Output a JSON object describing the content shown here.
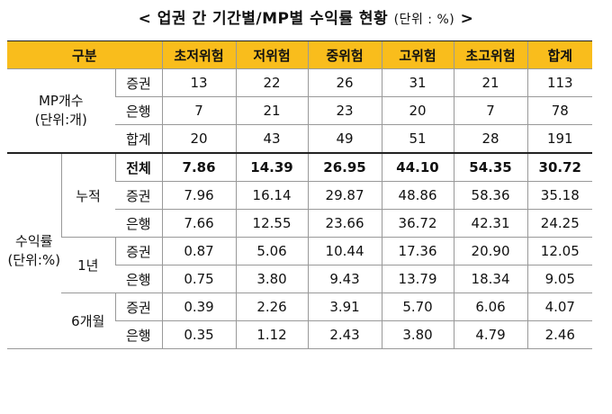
{
  "title": {
    "main": "< 업권 간 기간별/MP별 수익률 현황",
    "unit": "(단위 : %)",
    "close": ">"
  },
  "header": {
    "category": "구분",
    "columns": [
      "초저위험",
      "저위험",
      "중위험",
      "고위험",
      "초고위험",
      "합계"
    ]
  },
  "mp_count": {
    "label_line1": "MP개수",
    "label_line2": "(단위:개)",
    "rows": [
      {
        "sub": "증권",
        "values": [
          "13",
          "22",
          "26",
          "31",
          "21",
          "113"
        ]
      },
      {
        "sub": "은행",
        "values": [
          "7",
          "21",
          "23",
          "20",
          "7",
          "78"
        ]
      },
      {
        "sub": "합계",
        "values": [
          "20",
          "43",
          "49",
          "51",
          "28",
          "191"
        ]
      }
    ]
  },
  "returns": {
    "label_line1": "수익률",
    "label_line2": "(단위:%)",
    "cumulative": {
      "label": "누적",
      "rows": [
        {
          "sub": "전체",
          "values": [
            "7.86",
            "14.39",
            "26.95",
            "44.10",
            "54.35",
            "30.72"
          ]
        },
        {
          "sub": "증권",
          "values": [
            "7.96",
            "16.14",
            "29.87",
            "48.86",
            "58.36",
            "35.18"
          ]
        },
        {
          "sub": "은행",
          "values": [
            "7.66",
            "12.55",
            "23.66",
            "36.72",
            "42.31",
            "24.25"
          ]
        }
      ]
    },
    "one_year": {
      "label": "1년",
      "rows": [
        {
          "sub": "증권",
          "values": [
            "0.87",
            "5.06",
            "10.44",
            "17.36",
            "20.90",
            "12.05"
          ]
        },
        {
          "sub": "은행",
          "values": [
            "0.75",
            "3.80",
            "9.43",
            "13.79",
            "18.34",
            "9.05"
          ]
        }
      ]
    },
    "six_month": {
      "label": "6개월",
      "rows": [
        {
          "sub": "증권",
          "values": [
            "0.39",
            "2.26",
            "3.91",
            "5.70",
            "6.06",
            "4.07"
          ]
        },
        {
          "sub": "은행",
          "values": [
            "0.35",
            "1.12",
            "2.43",
            "3.80",
            "4.79",
            "2.46"
          ]
        }
      ]
    }
  },
  "colors": {
    "header_bg": "#f9bd1c"
  }
}
